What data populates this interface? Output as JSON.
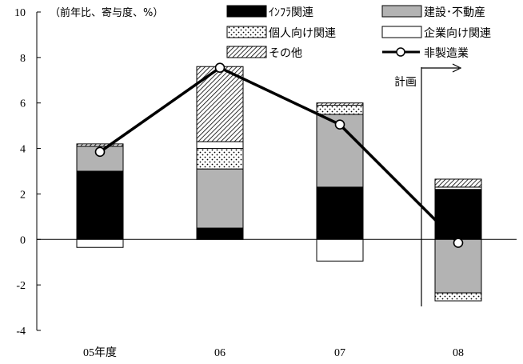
{
  "chart_data": {
    "type": "bar",
    "subtype": "stacked-bar-with-line",
    "unit_note": "（前年比、寄与度、%）",
    "categories": [
      "05年度",
      "06",
      "07",
      "08"
    ],
    "ylim": [
      -4,
      10
    ],
    "yticks": [
      -4,
      -2,
      0,
      2,
      4,
      6,
      8,
      10
    ],
    "ytick_labels": [
      "-4",
      "-2",
      "0",
      "2",
      "4",
      "6",
      "8",
      "10"
    ],
    "grid": false,
    "legend_position": "top",
    "series": [
      {
        "key": "infra",
        "name": "ｲﾝﾌﾗ関連",
        "fill": "solid-black",
        "values": [
          3.0,
          0.5,
          2.3,
          2.2
        ]
      },
      {
        "key": "construction",
        "name": "建設･不動産",
        "fill": "solid-gray",
        "values": [
          1.1,
          2.6,
          3.2,
          -2.35
        ]
      },
      {
        "key": "personal",
        "name": "個人向け関連",
        "fill": "dotted",
        "values": [
          0.0,
          0.9,
          0.4,
          -0.35
        ]
      },
      {
        "key": "corporate",
        "name": "企業向け関連",
        "fill": "white",
        "values": [
          -0.35,
          0.3,
          -0.95,
          0.1
        ]
      },
      {
        "key": "other",
        "name": "その他",
        "fill": "hatched",
        "values": [
          0.1,
          3.3,
          0.1,
          0.35
        ]
      }
    ],
    "line": {
      "name": "非製造業",
      "values": [
        3.85,
        7.55,
        5.05,
        -0.15
      ]
    },
    "annotation": {
      "text": "計画",
      "applies_to": "08"
    },
    "colors": {
      "black": "#000000",
      "gray": "#b3b3b3",
      "white": "#ffffff"
    }
  }
}
